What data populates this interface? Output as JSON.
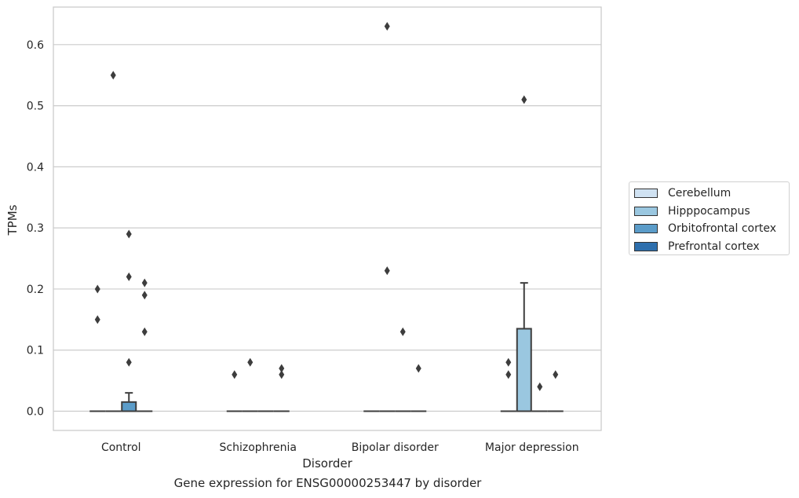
{
  "caption": "Gene expression for ENSG00000253447 by disorder",
  "chart_data": {
    "type": "box",
    "xlabel": "Disorder",
    "ylabel": "TPMs",
    "ylim": [
      -0.03,
      0.665
    ],
    "yticks": [
      "0.0",
      "0.1",
      "0.2",
      "0.3",
      "0.4",
      "0.5",
      "0.6"
    ],
    "ytick_values": [
      0.0,
      0.1,
      0.2,
      0.3,
      0.4,
      0.5,
      0.6
    ],
    "grid": "horizontal",
    "legend_placement": "right",
    "categories": [
      "Control",
      "Schizophrenia",
      "Bipolar disorder",
      "Major depression"
    ],
    "series": [
      {
        "name": "Cerebellum",
        "color": "#d0e2f2",
        "boxes": [
          {
            "q1": 0,
            "median": 0,
            "q3": 0,
            "whislo": 0,
            "whishi": 0,
            "fliers": [
              0.2,
              0.15
            ]
          },
          {
            "q1": 0,
            "median": 0,
            "q3": 0,
            "whislo": 0,
            "whishi": 0,
            "fliers": [
              0.06
            ]
          },
          {
            "q1": 0,
            "median": 0,
            "q3": 0,
            "whislo": 0,
            "whishi": 0,
            "fliers": []
          },
          {
            "q1": 0,
            "median": 0,
            "q3": 0,
            "whislo": 0,
            "whishi": 0,
            "fliers": [
              0.08,
              0.06
            ]
          }
        ]
      },
      {
        "name": "Hipppocampus",
        "color": "#9ac7e0",
        "boxes": [
          {
            "q1": 0,
            "median": 0,
            "q3": 0,
            "whislo": 0,
            "whishi": 0,
            "fliers": [
              0.55
            ]
          },
          {
            "q1": 0,
            "median": 0,
            "q3": 0,
            "whislo": 0,
            "whishi": 0,
            "fliers": [
              0.08
            ]
          },
          {
            "q1": 0,
            "median": 0,
            "q3": 0,
            "whislo": 0,
            "whishi": 0,
            "fliers": [
              0.63,
              0.23
            ]
          },
          {
            "q1": 0,
            "median": 0,
            "q3": 0.135,
            "whislo": 0,
            "whishi": 0.21,
            "fliers": [
              0.51
            ]
          }
        ]
      },
      {
        "name": "Orbitofrontal cortex",
        "color": "#5b9cc9",
        "boxes": [
          {
            "q1": 0,
            "median": 0,
            "q3": 0.015,
            "whislo": 0,
            "whishi": 0.03,
            "fliers": [
              0.29,
              0.22,
              0.08
            ]
          },
          {
            "q1": 0,
            "median": 0,
            "q3": 0,
            "whislo": 0,
            "whishi": 0,
            "fliers": []
          },
          {
            "q1": 0,
            "median": 0,
            "q3": 0,
            "whislo": 0,
            "whishi": 0,
            "fliers": [
              0.13
            ]
          },
          {
            "q1": 0,
            "median": 0,
            "q3": 0,
            "whislo": 0,
            "whishi": 0,
            "fliers": [
              0.04
            ]
          }
        ]
      },
      {
        "name": "Prefrontal cortex",
        "color": "#2e6fad",
        "boxes": [
          {
            "q1": 0,
            "median": 0,
            "q3": 0,
            "whislo": 0,
            "whishi": 0,
            "fliers": [
              0.21,
              0.19,
              0.13
            ]
          },
          {
            "q1": 0,
            "median": 0,
            "q3": 0,
            "whislo": 0,
            "whishi": 0,
            "fliers": [
              0.07,
              0.06
            ]
          },
          {
            "q1": 0,
            "median": 0,
            "q3": 0,
            "whislo": 0,
            "whishi": 0,
            "fliers": [
              0.07
            ]
          },
          {
            "q1": 0,
            "median": 0,
            "q3": 0,
            "whislo": 0,
            "whishi": 0,
            "fliers": [
              0.06
            ]
          }
        ]
      }
    ]
  }
}
